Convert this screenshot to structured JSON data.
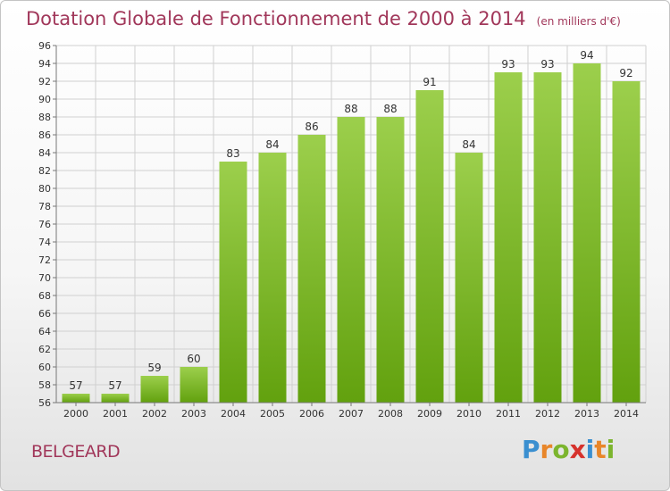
{
  "header": {
    "title": "Dotation Globale de Fonctionnement de 2000 à 2014",
    "unit": "(en milliers d'€)"
  },
  "footer": {
    "commune": "BELGEARD",
    "brand": [
      "P",
      "r",
      "o",
      "x",
      "i",
      "t",
      "i"
    ],
    "brand_colors": [
      "#3a8fd0",
      "#e8862a",
      "#7cb52e",
      "#d6322c",
      "#3a8fd0",
      "#e8862a",
      "#7cb52e"
    ]
  },
  "chart_data": {
    "type": "bar",
    "categories": [
      "2000",
      "2001",
      "2002",
      "2003",
      "2004",
      "2005",
      "2006",
      "2007",
      "2008",
      "2009",
      "2010",
      "2011",
      "2012",
      "2013",
      "2014"
    ],
    "values": [
      57,
      57,
      59,
      60,
      83,
      84,
      86,
      88,
      88,
      91,
      84,
      93,
      93,
      94,
      92
    ],
    "ylim": [
      56,
      96
    ],
    "yticks": [
      56,
      58,
      60,
      62,
      64,
      66,
      68,
      70,
      72,
      74,
      76,
      78,
      80,
      82,
      84,
      86,
      88,
      90,
      92,
      94,
      96
    ],
    "grid": true,
    "bar_color_top": "#9ccf4c",
    "bar_color_bottom": "#62a10e",
    "grid_color": "#d0d0d0"
  }
}
